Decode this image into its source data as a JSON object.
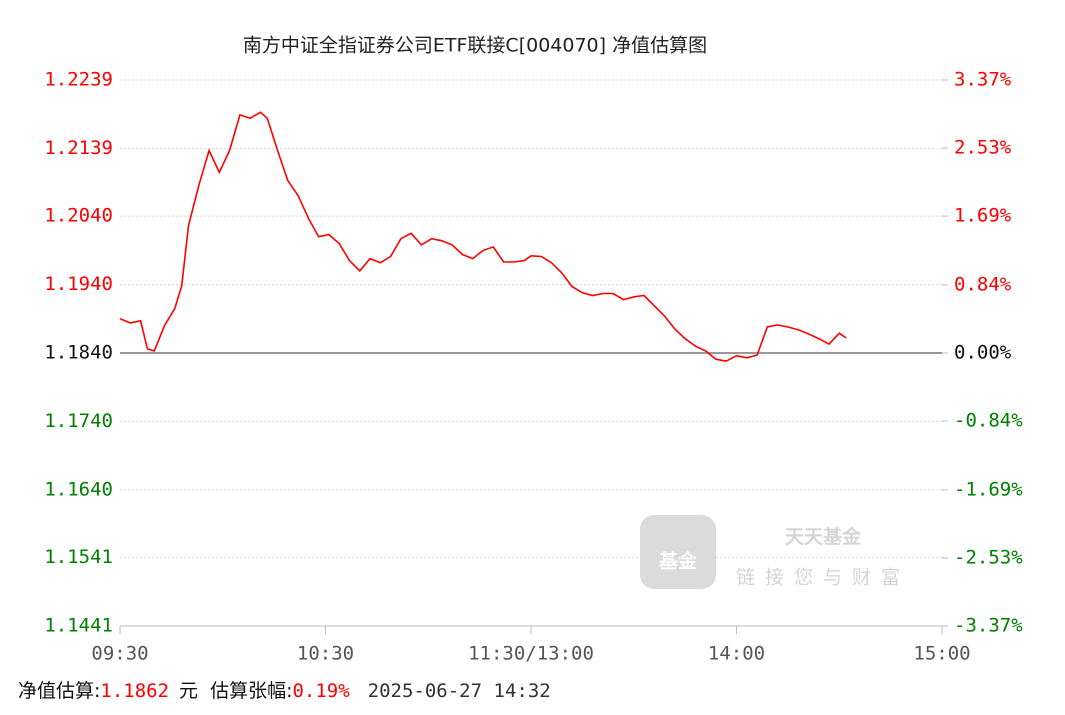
{
  "chart_data": {
    "type": "line",
    "title": "南方中证全指证券公司ETF联接C[004070] 净值估算图",
    "x": [
      "09:30",
      "09:33",
      "09:36",
      "09:38",
      "09:40",
      "09:43",
      "09:46",
      "09:48",
      "09:50",
      "09:53",
      "09:56",
      "09:59",
      "10:02",
      "10:05",
      "10:08",
      "10:11",
      "10:13",
      "10:16",
      "10:19",
      "10:22",
      "10:25",
      "10:28",
      "10:31",
      "10:34",
      "10:37",
      "10:40",
      "10:43",
      "10:46",
      "10:49",
      "10:52",
      "10:55",
      "10:58",
      "11:01",
      "11:04",
      "11:07",
      "11:10",
      "11:13",
      "11:16",
      "11:19",
      "11:22",
      "11:25",
      "11:28",
      "11:30",
      "13:03",
      "13:06",
      "13:09",
      "13:12",
      "13:15",
      "13:18",
      "13:21",
      "13:24",
      "13:27",
      "13:30",
      "13:33",
      "13:36",
      "13:39",
      "13:42",
      "13:45",
      "13:48",
      "13:51",
      "13:54",
      "13:57",
      "14:00",
      "14:03",
      "14:06",
      "14:09",
      "14:12",
      "14:15",
      "14:18",
      "14:21",
      "14:24",
      "14:27",
      "14:30",
      "14:32"
    ],
    "values": [
      1.189,
      1.1884,
      1.1887,
      1.1846,
      1.1843,
      1.188,
      1.1905,
      1.1938,
      1.2026,
      1.2085,
      1.2136,
      1.2104,
      1.2136,
      1.2188,
      1.2183,
      1.2192,
      1.2183,
      1.2136,
      1.2092,
      1.207,
      1.2037,
      1.201,
      1.2013,
      1.2,
      1.1975,
      1.196,
      1.1978,
      1.1972,
      1.1981,
      1.2007,
      1.2015,
      1.1998,
      1.2007,
      1.2004,
      1.1998,
      1.1984,
      1.1978,
      1.199,
      1.1995,
      1.1973,
      1.1973,
      1.1975,
      1.1982,
      1.1981,
      1.1972,
      1.1957,
      1.1937,
      1.1928,
      1.1924,
      1.1927,
      1.1927,
      1.1918,
      1.1922,
      1.1924,
      1.1909,
      1.1894,
      1.1875,
      1.1861,
      1.185,
      1.1843,
      1.1831,
      1.1828,
      1.1836,
      1.1833,
      1.1837,
      1.1878,
      1.1881,
      1.1878,
      1.1874,
      1.1868,
      1.1861,
      1.1853,
      1.1869,
      1.1862
    ],
    "color": "#ff0000",
    "up_color": "#ff0000",
    "down_color": "#008000",
    "xlim": [
      "09:30",
      "15:00"
    ],
    "xticks": [
      "09:30",
      "10:30",
      "11:30/13:00",
      "14:00",
      "15:00"
    ],
    "ylim": [
      1.1441,
      1.2239
    ],
    "yticks": [
      1.2239,
      1.2139,
      {
        "value": 1.204,
        "label": "1.2040"
      },
      {
        "value": 1.194,
        "label": "1.1940"
      },
      {
        "value": 1.184,
        "label": "1.1840"
      },
      {
        "value": 1.174,
        "label": "1.1740"
      },
      {
        "value": 1.164,
        "label": "1.1640"
      },
      1.1541,
      1.1441
    ],
    "y2lim": [
      -3.37,
      3.37
    ],
    "y2ticks": [
      {
        "value": 3.37,
        "label": "3.37%"
      },
      {
        "value": 2.53,
        "label": "2.53%"
      },
      {
        "value": 1.69,
        "label": "1.69%"
      },
      {
        "value": 0.84,
        "label": "0.84%"
      },
      {
        "value": 0,
        "label": "0.00%"
      },
      {
        "value": -0.84,
        "label": "-0.84%"
      },
      {
        "value": -1.69,
        "label": "-1.69%"
      },
      {
        "value": -2.53,
        "label": "-2.53%"
      },
      {
        "value": -3.37,
        "label": "-3.37%"
      }
    ],
    "grid": true
  },
  "watermark": {
    "icon": "基金",
    "brand": "天天基金",
    "slogan": "链接您与财富"
  },
  "footer": {
    "nav_label": "净值估算:",
    "nav": "1.1862",
    "unit": "元",
    "change_label": "估算张幅:",
    "change": "0.19%",
    "time": "2025-06-27 14:32"
  }
}
